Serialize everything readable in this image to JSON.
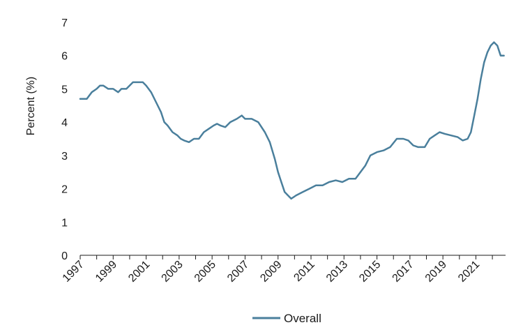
{
  "chart_data": {
    "type": "line",
    "title": "",
    "xlabel": "",
    "ylabel": "Percent (%)",
    "xlim": [
      1997,
      2022.8
    ],
    "ylim": [
      0,
      7
    ],
    "x_tick_labels": [
      "1997",
      "1999",
      "2001",
      "2003",
      "2005",
      "2007",
      "2009",
      "2011",
      "2013",
      "2015",
      "2017",
      "2019",
      "2021"
    ],
    "y_tick_labels": [
      "0",
      "1",
      "2",
      "3",
      "4",
      "5",
      "6",
      "7"
    ],
    "grid": false,
    "legend_position": "bottom",
    "line_color": "#4a7f9c",
    "series": [
      {
        "name": "Overall",
        "x": [
          1997.0,
          1997.4,
          1997.7,
          1998.0,
          1998.2,
          1998.4,
          1998.7,
          1999.0,
          1999.3,
          1999.5,
          1999.8,
          2000.2,
          2000.5,
          2000.8,
          2001.0,
          2001.3,
          2001.6,
          2001.9,
          2002.1,
          2002.3,
          2002.6,
          2002.9,
          2003.1,
          2003.3,
          2003.6,
          2003.9,
          2004.2,
          2004.5,
          2004.8,
          2005.1,
          2005.3,
          2005.5,
          2005.8,
          2006.1,
          2006.5,
          2006.8,
          2007.0,
          2007.4,
          2007.8,
          2008.2,
          2008.5,
          2008.8,
          2009.0,
          2009.2,
          2009.4,
          2009.6,
          2009.8,
          2010.1,
          2010.5,
          2010.9,
          2011.3,
          2011.7,
          2012.1,
          2012.5,
          2012.9,
          2013.3,
          2013.7,
          2014.0,
          2014.3,
          2014.6,
          2015.0,
          2015.4,
          2015.8,
          2016.2,
          2016.6,
          2016.9,
          2017.2,
          2017.5,
          2017.9,
          2018.2,
          2018.5,
          2018.8,
          2019.1,
          2019.5,
          2019.9,
          2020.2,
          2020.5,
          2020.7,
          2020.9,
          2021.1,
          2021.3,
          2021.5,
          2021.7,
          2021.9,
          2022.1,
          2022.3,
          2022.5,
          2022.7
        ],
        "values": [
          4.7,
          4.7,
          4.9,
          5.0,
          5.1,
          5.1,
          5.0,
          5.0,
          4.9,
          5.0,
          5.0,
          5.2,
          5.2,
          5.2,
          5.1,
          4.9,
          4.6,
          4.3,
          4.0,
          3.9,
          3.7,
          3.6,
          3.5,
          3.45,
          3.4,
          3.5,
          3.5,
          3.7,
          3.8,
          3.9,
          3.95,
          3.9,
          3.85,
          4.0,
          4.1,
          4.2,
          4.1,
          4.1,
          4.0,
          3.7,
          3.4,
          2.9,
          2.5,
          2.2,
          1.9,
          1.8,
          1.7,
          1.8,
          1.9,
          2.0,
          2.1,
          2.1,
          2.2,
          2.25,
          2.2,
          2.3,
          2.3,
          2.5,
          2.7,
          3.0,
          3.1,
          3.15,
          3.25,
          3.5,
          3.5,
          3.45,
          3.3,
          3.25,
          3.25,
          3.5,
          3.6,
          3.7,
          3.65,
          3.6,
          3.55,
          3.45,
          3.5,
          3.7,
          4.2,
          4.7,
          5.3,
          5.8,
          6.1,
          6.3,
          6.4,
          6.3,
          6.0,
          6.0
        ]
      }
    ]
  }
}
